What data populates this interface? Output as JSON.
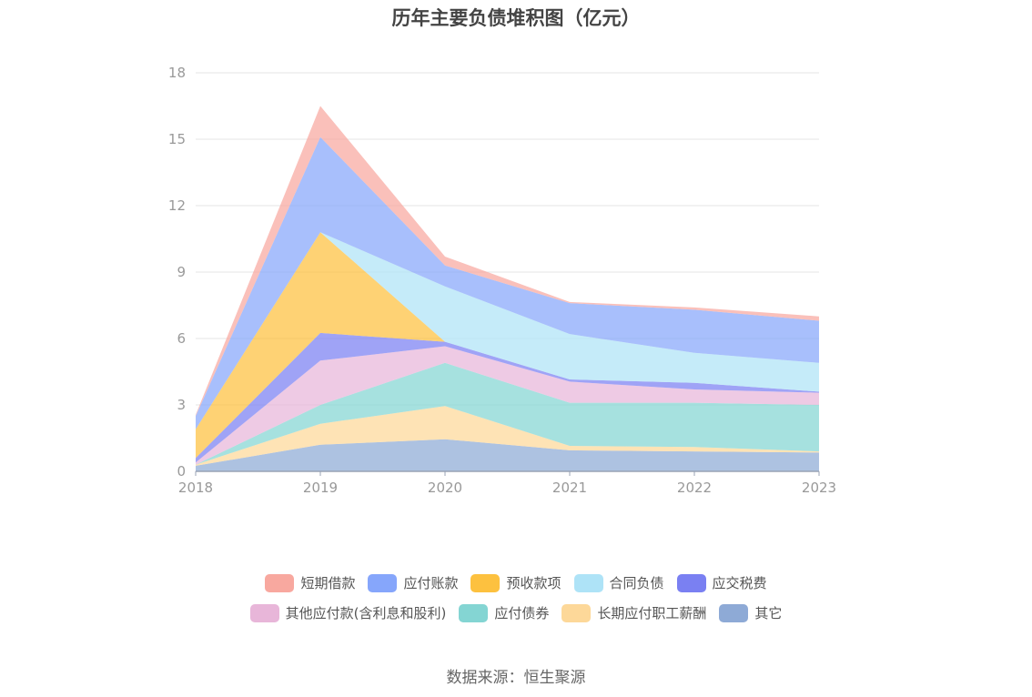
{
  "chart_data": {
    "type": "area",
    "stacked": true,
    "title": "历年主要负债堆积图（亿元）",
    "x": [
      "2018",
      "2019",
      "2020",
      "2021",
      "2022",
      "2023"
    ],
    "ylim": [
      0,
      18
    ],
    "yticks": [
      "0",
      "3",
      "6",
      "9",
      "12",
      "15",
      "18"
    ],
    "grid": true,
    "legend_position": "bottom",
    "series": [
      {
        "name": "其它",
        "color": "#8eaad6",
        "values": [
          0.25,
          1.2,
          1.45,
          0.95,
          0.9,
          0.85
        ]
      },
      {
        "name": "长期应付职工薪酬",
        "color": "#fdd899",
        "values": [
          0.05,
          0.95,
          1.5,
          0.2,
          0.2,
          0.05
        ]
      },
      {
        "name": "应付债券",
        "color": "#84d5d3",
        "values": [
          0,
          0.85,
          1.95,
          1.95,
          2.0,
          2.1
        ]
      },
      {
        "name": "其他应付款(含利息和股利)",
        "color": "#e8b6d9",
        "values": [
          0.1,
          2.0,
          0.75,
          0.95,
          0.6,
          0.55
        ]
      },
      {
        "name": "应交税费",
        "color": "#7a80f2",
        "values": [
          0.2,
          1.25,
          0.2,
          0.1,
          0.3,
          0.05
        ]
      },
      {
        "name": "预收款项",
        "color": "#fdc13f",
        "values": [
          1.3,
          4.55,
          0,
          0,
          0,
          0
        ]
      },
      {
        "name": "合同负债",
        "color": "#aee3f7",
        "values": [
          0,
          0,
          2.5,
          2.05,
          1.35,
          1.3
        ]
      },
      {
        "name": "应付账款",
        "color": "#86a6fb",
        "values": [
          0.6,
          4.3,
          0.95,
          1.4,
          1.95,
          1.9
        ]
      },
      {
        "name": "短期借款",
        "color": "#f8a89f",
        "values": [
          0.05,
          1.4,
          0.4,
          0.05,
          0.1,
          0.2
        ]
      }
    ]
  },
  "legend_rows": [
    [
      "短期借款",
      "应付账款",
      "预收款项",
      "合同负债",
      "应交税费"
    ],
    [
      "其他应付款(含利息和股利)",
      "应付债券",
      "长期应付职工薪酬",
      "其它"
    ]
  ],
  "source_note": "数据来源：恒生聚源"
}
